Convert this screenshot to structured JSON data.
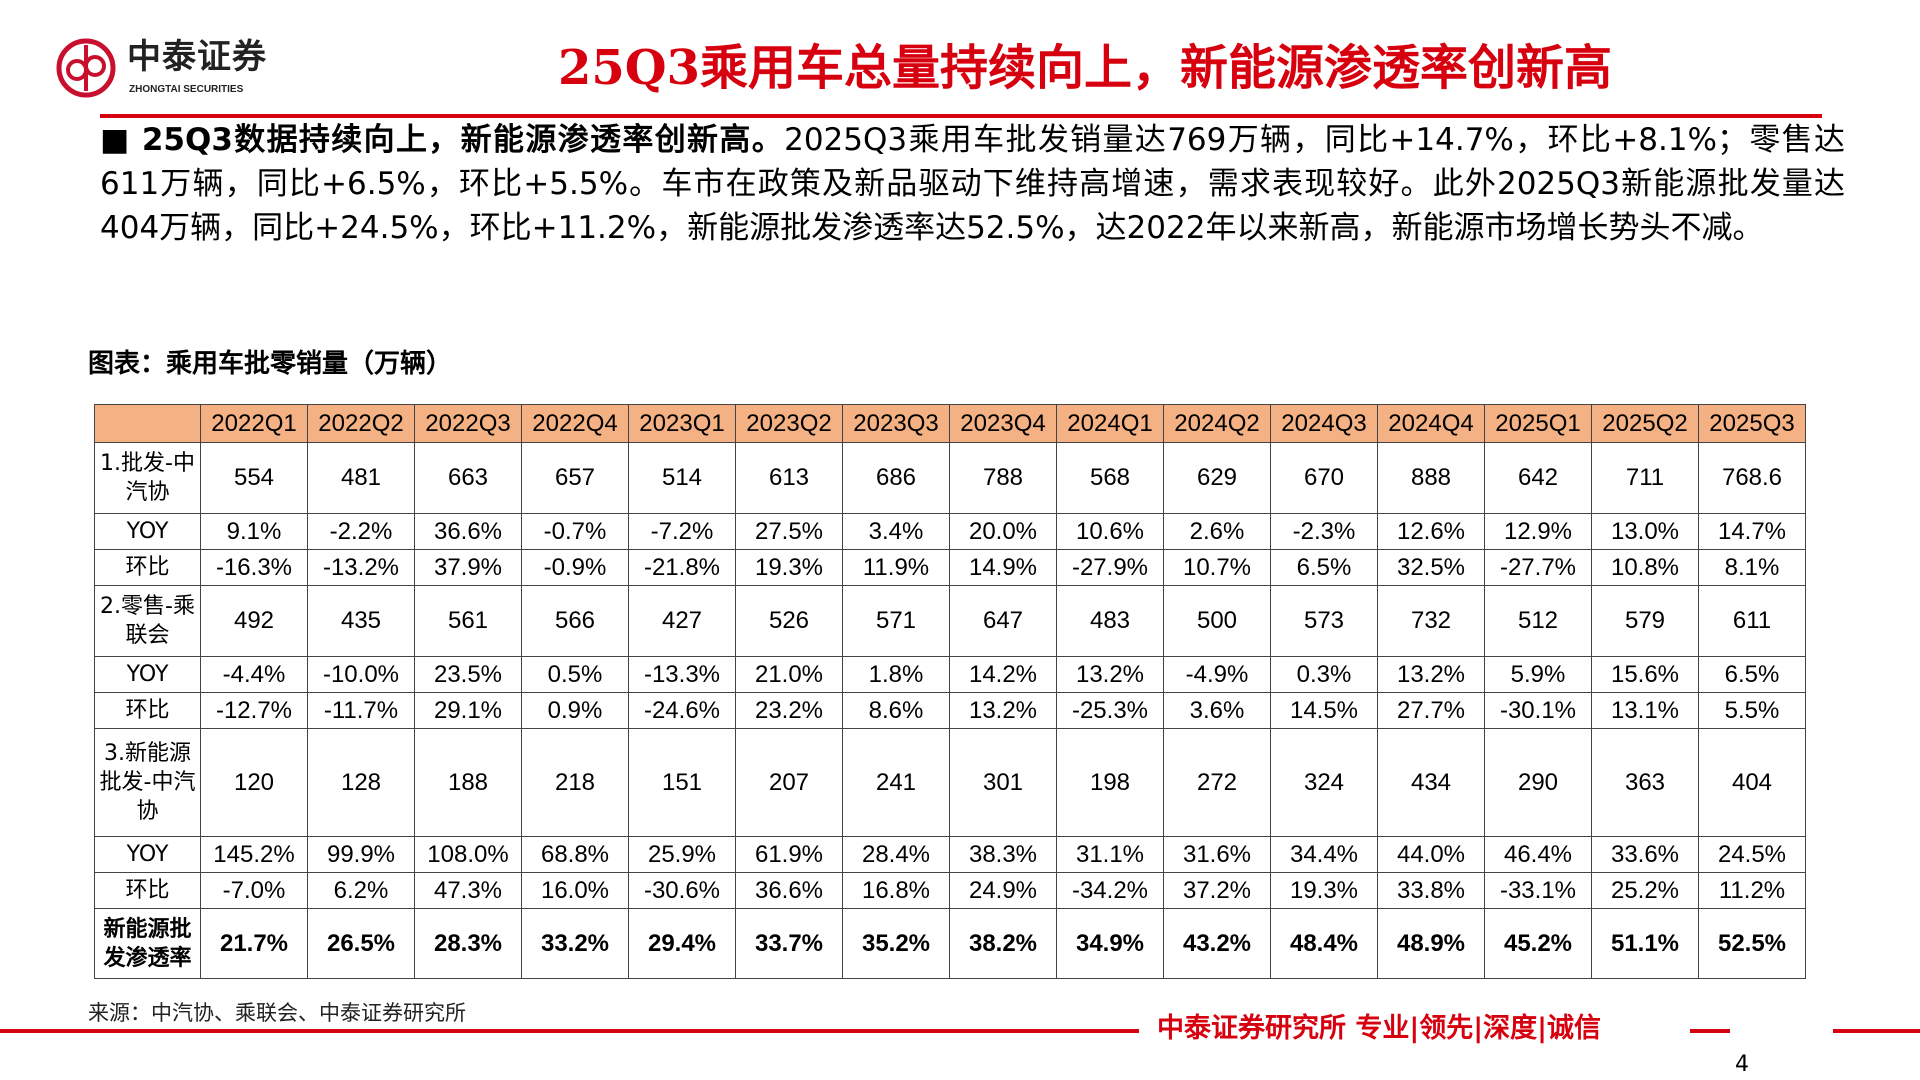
{
  "brand": {
    "name_cn": "中泰证券",
    "name_en": "ZHONGTAI SECURITIES",
    "color": "#d7000f"
  },
  "title": "25Q3乘用车总量持续向上，新能源渗透率创新高",
  "paragraph": {
    "bullet": "■",
    "lead": "25Q3数据持续向上，新能源渗透率创新高。",
    "body": "2025Q3乘用车批发销量达769万辆，同比+14.7%，环比+8.1%；零售达611万辆，同比+6.5%，环比+5.5%。车市在政策及新品驱动下维持高增速，需求表现较好。此外2025Q3新能源批发量达404万辆，同比+24.5%，环比+11.2%，新能源批发渗透率达52.5%，达2022年以来新高，新能源市场增长势头不减。"
  },
  "caption": "图表：乘用车批零销量（万辆）",
  "table": {
    "header_color": "#f4b183",
    "columns": [
      "",
      "2022Q1",
      "2022Q2",
      "2022Q3",
      "2022Q4",
      "2023Q1",
      "2023Q2",
      "2023Q3",
      "2023Q4",
      "2024Q1",
      "2024Q2",
      "2024Q3",
      "2024Q4",
      "2025Q1",
      "2025Q2",
      "2025Q3"
    ],
    "rows": [
      {
        "label": "1.批发-中汽协",
        "kind": "main",
        "values": [
          "554",
          "481",
          "663",
          "657",
          "514",
          "613",
          "686",
          "788",
          "568",
          "629",
          "670",
          "888",
          "642",
          "711",
          "768.6"
        ]
      },
      {
        "label": "YOY",
        "kind": "sub",
        "values": [
          "9.1%",
          "-2.2%",
          "36.6%",
          "-0.7%",
          "-7.2%",
          "27.5%",
          "3.4%",
          "20.0%",
          "10.6%",
          "2.6%",
          "-2.3%",
          "12.6%",
          "12.9%",
          "13.0%",
          "14.7%"
        ]
      },
      {
        "label": "环比",
        "kind": "sub",
        "values": [
          "-16.3%",
          "-13.2%",
          "37.9%",
          "-0.9%",
          "-21.8%",
          "19.3%",
          "11.9%",
          "14.9%",
          "-27.9%",
          "10.7%",
          "6.5%",
          "32.5%",
          "-27.7%",
          "10.8%",
          "8.1%"
        ]
      },
      {
        "label": "2.零售-乘联会",
        "kind": "main",
        "values": [
          "492",
          "435",
          "561",
          "566",
          "427",
          "526",
          "571",
          "647",
          "483",
          "500",
          "573",
          "732",
          "512",
          "579",
          "611"
        ]
      },
      {
        "label": "YOY",
        "kind": "sub",
        "values": [
          "-4.4%",
          "-10.0%",
          "23.5%",
          "0.5%",
          "-13.3%",
          "21.0%",
          "1.8%",
          "14.2%",
          "13.2%",
          "-4.9%",
          "0.3%",
          "13.2%",
          "5.9%",
          "15.6%",
          "6.5%"
        ]
      },
      {
        "label": "环比",
        "kind": "sub",
        "values": [
          "-12.7%",
          "-11.7%",
          "29.1%",
          "0.9%",
          "-24.6%",
          "23.2%",
          "8.6%",
          "13.2%",
          "-25.3%",
          "3.6%",
          "14.5%",
          "27.7%",
          "-30.1%",
          "13.1%",
          "5.5%"
        ]
      },
      {
        "label": "3.新能源批发-中汽协",
        "kind": "main3",
        "values": [
          "120",
          "128",
          "188",
          "218",
          "151",
          "207",
          "241",
          "301",
          "198",
          "272",
          "324",
          "434",
          "290",
          "363",
          "404"
        ]
      },
      {
        "label": "YOY",
        "kind": "sub",
        "values": [
          "145.2%",
          "99.9%",
          "108.0%",
          "68.8%",
          "25.9%",
          "61.9%",
          "28.4%",
          "38.3%",
          "31.1%",
          "31.6%",
          "34.4%",
          "44.0%",
          "46.4%",
          "33.6%",
          "24.5%"
        ]
      },
      {
        "label": "环比",
        "kind": "sub",
        "values": [
          "-7.0%",
          "6.2%",
          "47.3%",
          "16.0%",
          "-30.6%",
          "36.6%",
          "16.8%",
          "24.9%",
          "-34.2%",
          "37.2%",
          "19.3%",
          "33.8%",
          "-33.1%",
          "25.2%",
          "11.2%"
        ]
      },
      {
        "label": "新能源批发渗透率",
        "kind": "pen",
        "values": [
          "21.7%",
          "26.5%",
          "28.3%",
          "33.2%",
          "29.4%",
          "33.7%",
          "35.2%",
          "38.2%",
          "34.9%",
          "43.2%",
          "48.4%",
          "48.9%",
          "45.2%",
          "51.1%",
          "52.5%"
        ]
      }
    ]
  },
  "source": "来源：中汽协、乘联会、中泰证券研究所",
  "footer": {
    "text": "中泰证券研究所 专业|领先|深度|诚信",
    "page": "4"
  }
}
